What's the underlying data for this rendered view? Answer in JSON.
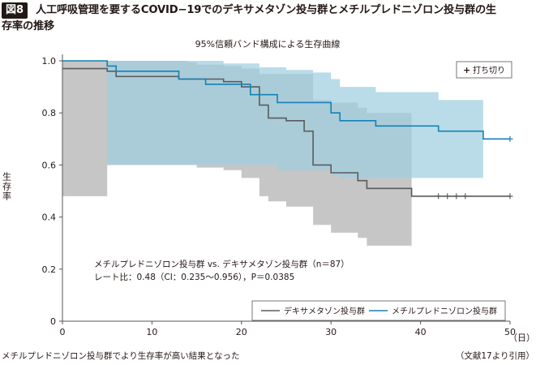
{
  "figure": {
    "number_label": "図8",
    "title_line1": "人工呼吸管理を要するCOVID−19でのデキサメタゾン投与群とメチルプレドニゾロン投与群の生",
    "title_line2": "存率の推移",
    "caption_left": "メチルプレドニゾロン投与群でより生存率が高い結果となった",
    "caption_right": "（文献17より引用）"
  },
  "chart_data": {
    "type": "line",
    "subtitle": "95%信頼バンド構成による生存曲線",
    "ylabel": "生存率",
    "x_unit": "（日）",
    "xlim": [
      0,
      50
    ],
    "ylim": [
      0,
      1.0
    ],
    "x_ticks": [
      "0",
      "10",
      "20",
      "30",
      "40",
      "50"
    ],
    "y_ticks": [
      "0",
      "0.2",
      "0.4",
      "0.6",
      "0.8",
      "1.0"
    ],
    "x_tick_values": [
      0,
      10,
      20,
      30,
      40,
      50
    ],
    "y_tick_values": [
      0,
      0.2,
      0.4,
      0.6,
      0.8,
      1.0
    ],
    "censor_legend": "打ち切り",
    "annotation_line1": "メチルプレドニゾロン投与群 vs. デキサメタゾン投与群（n＝87）",
    "annotation_line2": "レート比：0.48（CI：0.235〜0.956），P＝0.0385",
    "series": [
      {
        "name": "デキサメタゾン投与群",
        "color": "#5b5b5b",
        "band_color": "#c6c6c6",
        "steps": [
          [
            0,
            0.97
          ],
          [
            5,
            0.96
          ],
          [
            6,
            0.94
          ],
          [
            13,
            0.93
          ],
          [
            18,
            0.92
          ],
          [
            20,
            0.9
          ],
          [
            22,
            0.83
          ],
          [
            23,
            0.78
          ],
          [
            25,
            0.77
          ],
          [
            27,
            0.73
          ],
          [
            28,
            0.6
          ],
          [
            30,
            0.57
          ],
          [
            33,
            0.54
          ],
          [
            34,
            0.51
          ],
          [
            39,
            0.48
          ],
          [
            50,
            0.48
          ]
        ],
        "band_upper": [
          [
            0,
            1.0
          ],
          [
            14,
            0.995
          ],
          [
            15,
            0.985
          ],
          [
            18,
            0.98
          ],
          [
            20,
            0.97
          ],
          [
            22,
            0.95
          ],
          [
            25,
            0.95
          ],
          [
            28,
            0.85
          ],
          [
            30,
            0.84
          ],
          [
            33,
            0.82
          ],
          [
            34,
            0.8
          ],
          [
            39,
            0.8
          ]
        ],
        "band_lower": [
          [
            0,
            0.48
          ],
          [
            5,
            0.6
          ],
          [
            6,
            0.6
          ],
          [
            15,
            0.59
          ],
          [
            18,
            0.58
          ],
          [
            20,
            0.55
          ],
          [
            22,
            0.48
          ],
          [
            23,
            0.46
          ],
          [
            25,
            0.44
          ],
          [
            28,
            0.37
          ],
          [
            30,
            0.34
          ],
          [
            33,
            0.32
          ],
          [
            34,
            0.29
          ],
          [
            39,
            0.29
          ]
        ],
        "censor_x": [
          42,
          43,
          44,
          45,
          50
        ]
      },
      {
        "name": "メチルプレドニゾロン投与群",
        "color": "#1681b3",
        "band_color": "#9fcfe1",
        "steps": [
          [
            0,
            1.0
          ],
          [
            5,
            0.98
          ],
          [
            6,
            0.96
          ],
          [
            13,
            0.93
          ],
          [
            16,
            0.91
          ],
          [
            21,
            0.87
          ],
          [
            24,
            0.84
          ],
          [
            30,
            0.8
          ],
          [
            31,
            0.77
          ],
          [
            35,
            0.75
          ],
          [
            42,
            0.73
          ],
          [
            47,
            0.7
          ],
          [
            50,
            0.7
          ]
        ],
        "band_upper": [
          [
            0,
            1.0
          ],
          [
            14,
            1.0
          ],
          [
            18,
            0.99
          ],
          [
            22,
            0.975
          ],
          [
            25,
            0.965
          ],
          [
            28,
            0.955
          ],
          [
            30,
            0.93
          ],
          [
            31,
            0.9
          ],
          [
            35,
            0.88
          ],
          [
            42,
            0.85
          ],
          [
            47,
            0.85
          ]
        ],
        "band_lower": [
          [
            0,
            1.0
          ],
          [
            5,
            0.6
          ],
          [
            7,
            0.6
          ],
          [
            14,
            0.6
          ],
          [
            18,
            0.6
          ],
          [
            21,
            0.6
          ],
          [
            24,
            0.58
          ],
          [
            30,
            0.56
          ],
          [
            31,
            0.55
          ],
          [
            42,
            0.55
          ],
          [
            47,
            0.55
          ]
        ],
        "censor_x": [
          50
        ]
      }
    ],
    "legend_location": "bottom-right"
  }
}
